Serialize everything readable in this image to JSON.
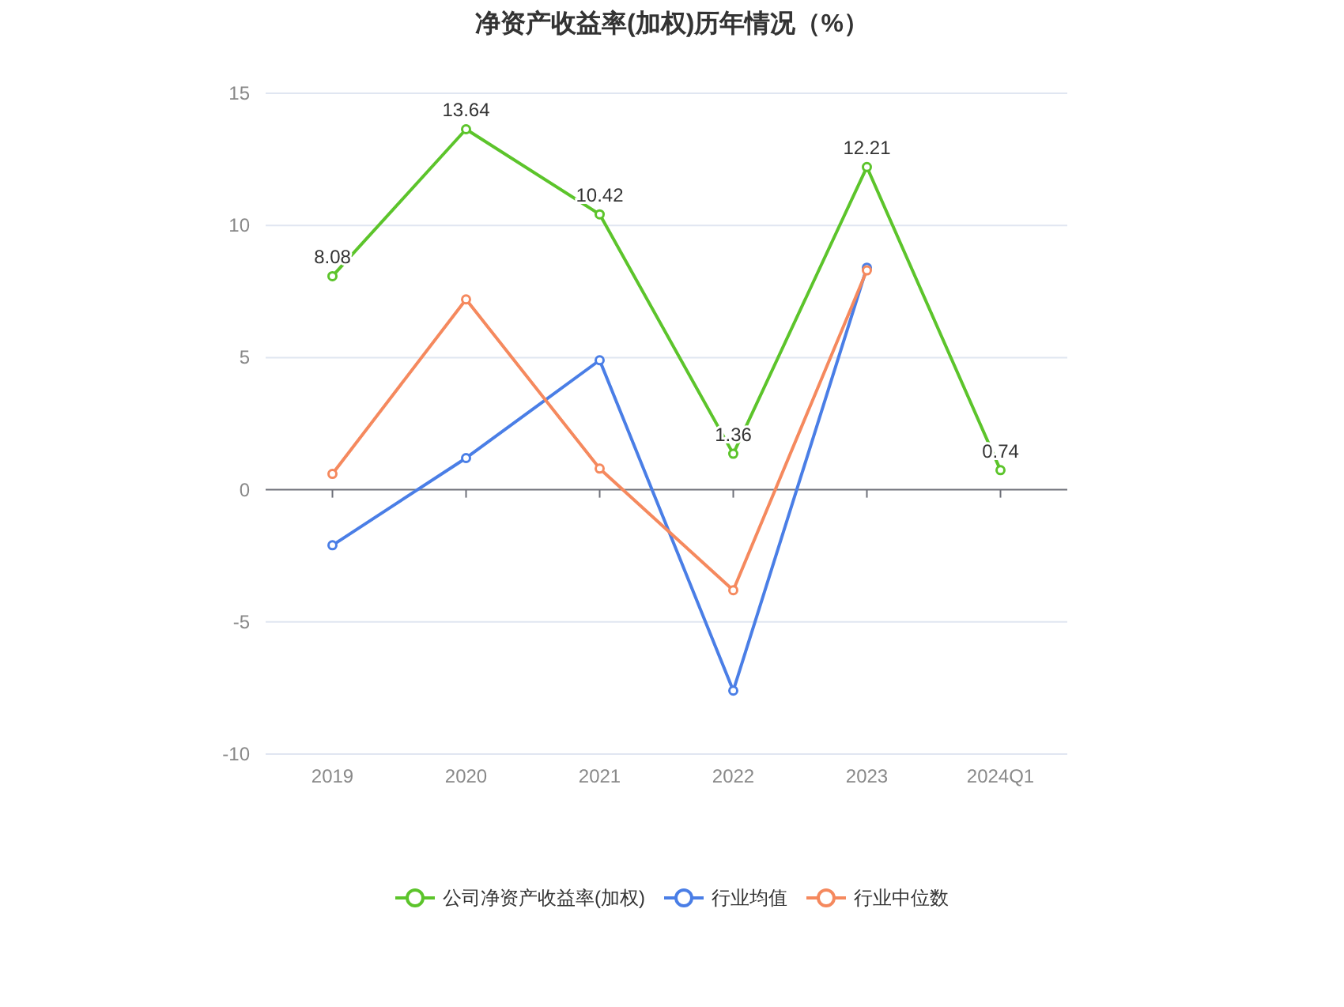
{
  "chart_data": {
    "type": "line",
    "title": "净资产收益率(加权)历年情况（%）",
    "categories": [
      "2019",
      "2020",
      "2021",
      "2022",
      "2023",
      "2024Q1"
    ],
    "series": [
      {
        "name": "公司净资产收益率(加权)",
        "color": "#5cc42b",
        "values": [
          8.08,
          13.64,
          10.42,
          1.36,
          12.21,
          0.74
        ],
        "value_labels": [
          "8.08",
          "13.64",
          "10.42",
          "1.36",
          "12.21",
          "0.74"
        ]
      },
      {
        "name": "行业均值",
        "color": "#4a7ee6",
        "values": [
          -2.1,
          1.2,
          4.9,
          -7.6,
          8.4,
          null
        ]
      },
      {
        "name": "行业中位数",
        "color": "#f5895e",
        "values": [
          0.6,
          7.2,
          0.8,
          -3.8,
          8.3,
          null
        ]
      }
    ],
    "ylim": [
      -10,
      15
    ],
    "yticks": [
      -10,
      -5,
      0,
      5,
      10,
      15
    ],
    "grid": "y",
    "legend": "bottom",
    "marker": "circle",
    "line_style": "solid"
  }
}
